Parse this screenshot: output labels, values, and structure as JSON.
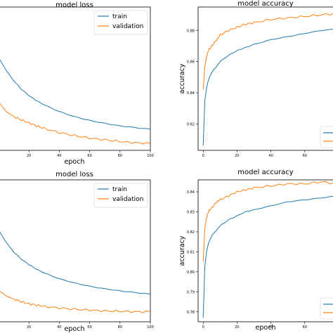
{
  "colors": {
    "train": "#1f77b4",
    "validation": "#ff7f0e",
    "frame": "#000000"
  },
  "chart_data": [
    {
      "type": "line",
      "title": "model loss",
      "xlabel": "epoch",
      "ylabel": "",
      "xlim": [
        0,
        100
      ],
      "xticks": [
        "20",
        "40",
        "60",
        "80",
        "100"
      ],
      "yticks": [],
      "legend_position": "top-right",
      "grid": false,
      "series": [
        {
          "name": "train",
          "x": [
            0,
            5,
            10,
            15,
            20,
            25,
            30,
            40,
            50,
            60,
            70,
            80,
            90,
            100
          ],
          "values": [
            0.5,
            0.47,
            0.445,
            0.425,
            0.41,
            0.398,
            0.388,
            0.372,
            0.36,
            0.351,
            0.344,
            0.338,
            0.334,
            0.33
          ]
        },
        {
          "name": "validation",
          "x": [
            0,
            5,
            10,
            15,
            20,
            25,
            30,
            40,
            50,
            60,
            70,
            80,
            90,
            100
          ],
          "values": [
            0.395,
            0.372,
            0.36,
            0.352,
            0.345,
            0.338,
            0.332,
            0.322,
            0.315,
            0.309,
            0.305,
            0.301,
            0.298,
            0.296
          ]
        }
      ]
    },
    {
      "type": "line",
      "title": "model accuracy",
      "xlabel": "",
      "ylabel": "accuracy",
      "xlim": [
        -3,
        80
      ],
      "ylim": [
        0.803,
        0.895
      ],
      "xticks": [
        "0",
        "20",
        "40",
        "60"
      ],
      "yticks": [
        "0.82",
        "0.84",
        "0.86",
        "0.88"
      ],
      "legend_position": "lower-right",
      "grid": false,
      "series": [
        {
          "name": "",
          "x": [
            0,
            1,
            2,
            3,
            5,
            8,
            10,
            15,
            20,
            25,
            30,
            40,
            50,
            60,
            70,
            80
          ],
          "values": [
            0.806,
            0.835,
            0.843,
            0.848,
            0.853,
            0.857,
            0.86,
            0.864,
            0.867,
            0.869,
            0.871,
            0.874,
            0.876,
            0.878,
            0.88,
            0.881
          ]
        },
        {
          "name": "",
          "x": [
            0,
            1,
            2,
            3,
            5,
            8,
            10,
            15,
            20,
            25,
            30,
            40,
            50,
            60,
            70,
            80
          ],
          "values": [
            0.842,
            0.857,
            0.863,
            0.867,
            0.87,
            0.874,
            0.877,
            0.88,
            0.882,
            0.884,
            0.885,
            0.887,
            0.888,
            0.889,
            0.89,
            0.891
          ]
        }
      ]
    },
    {
      "type": "line",
      "title": "model loss",
      "xlabel": "epoch",
      "ylabel": "",
      "xlim": [
        0,
        100
      ],
      "xticks": [
        "20",
        "40",
        "60",
        "80",
        "100"
      ],
      "yticks": [],
      "legend_position": "top-right",
      "grid": false,
      "series": [
        {
          "name": "train",
          "x": [
            0,
            5,
            10,
            15,
            20,
            25,
            30,
            40,
            50,
            60,
            70,
            80,
            90,
            100
          ],
          "values": [
            0.5,
            0.47,
            0.447,
            0.43,
            0.417,
            0.406,
            0.397,
            0.383,
            0.373,
            0.365,
            0.359,
            0.354,
            0.35,
            0.346
          ]
        },
        {
          "name": "validation",
          "x": [
            0,
            5,
            10,
            15,
            20,
            25,
            30,
            40,
            50,
            60,
            70,
            80,
            90,
            100
          ],
          "values": [
            0.355,
            0.342,
            0.334,
            0.328,
            0.323,
            0.32,
            0.317,
            0.313,
            0.31,
            0.308,
            0.306,
            0.305,
            0.304,
            0.304
          ]
        }
      ]
    },
    {
      "type": "line",
      "title": "model accuracy",
      "xlabel": "epoch",
      "ylabel": "accuracy",
      "xlim": [
        -3,
        80
      ],
      "ylim": [
        0.775,
        0.846
      ],
      "xticks": [
        "0",
        "20",
        "40",
        "60"
      ],
      "yticks": [
        "0.78",
        "0.79",
        "0.80",
        "0.81",
        "0.82",
        "0.83",
        "0.84"
      ],
      "legend_position": "lower-right",
      "grid": false,
      "series": [
        {
          "name": "",
          "x": [
            0,
            1,
            2,
            3,
            5,
            8,
            10,
            15,
            20,
            25,
            30,
            40,
            50,
            60,
            70,
            80
          ],
          "values": [
            0.777,
            0.803,
            0.81,
            0.814,
            0.818,
            0.821,
            0.823,
            0.826,
            0.828,
            0.83,
            0.831,
            0.833,
            0.835,
            0.836,
            0.837,
            0.838
          ]
        },
        {
          "name": "",
          "x": [
            0,
            1,
            2,
            3,
            5,
            8,
            10,
            15,
            20,
            25,
            30,
            40,
            50,
            60,
            70,
            80
          ],
          "values": [
            0.805,
            0.822,
            0.827,
            0.83,
            0.832,
            0.835,
            0.836,
            0.838,
            0.84,
            0.841,
            0.842,
            0.843,
            0.844,
            0.844,
            0.845,
            0.844
          ]
        }
      ]
    }
  ]
}
